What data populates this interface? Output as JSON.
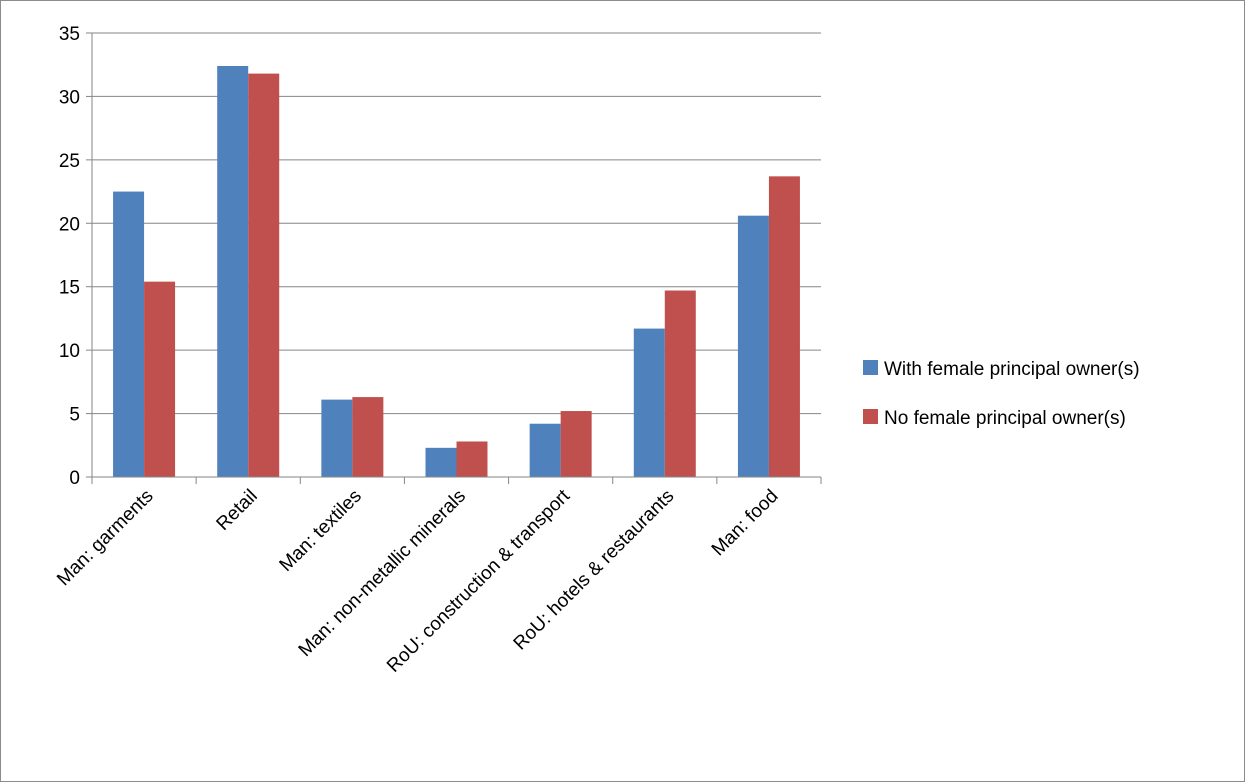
{
  "chart_data": {
    "type": "bar",
    "title": "",
    "xlabel": "",
    "ylabel": "",
    "categories": [
      "Man: garments",
      "Retail",
      "Man: textiles",
      "Man: non-metallic minerals",
      "RoU: construction & transport",
      "RoU: hotels & restaurants",
      "Man: food"
    ],
    "series": [
      {
        "name": "With female principal owner(s)",
        "color": "#4f81bd",
        "values": [
          22.5,
          32.4,
          6.1,
          2.3,
          4.2,
          11.7,
          20.6
        ]
      },
      {
        "name": "No female principal owner(s)",
        "color": "#c0504d",
        "values": [
          15.4,
          31.8,
          6.3,
          2.8,
          5.2,
          14.7,
          23.7
        ]
      }
    ],
    "ylim": [
      0,
      35
    ],
    "yticks": [
      "0",
      "5",
      "10",
      "15",
      "20",
      "25",
      "30",
      "35"
    ],
    "grid": true,
    "legend_position": "right"
  }
}
